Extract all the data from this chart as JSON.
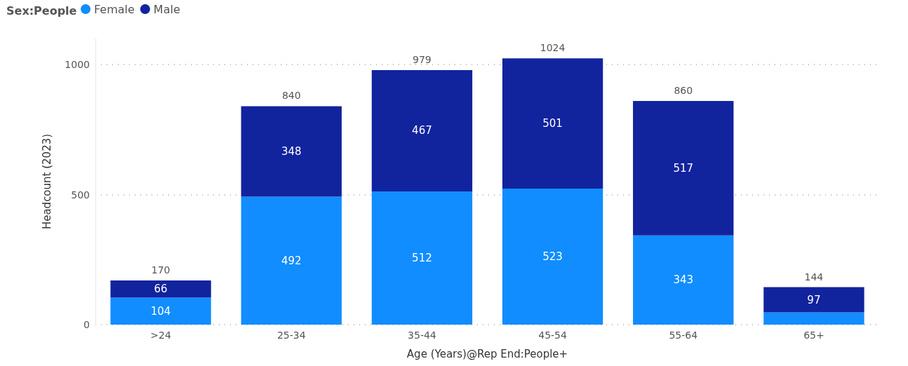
{
  "chart_data": {
    "type": "bar",
    "stacked": true,
    "legend_title": "Sex:People",
    "xlabel": "Age (Years)@Rep End:People+",
    "ylabel": "Headcount (2023)",
    "categories": [
      ">24",
      "25-34",
      "35-44",
      "45-54",
      "55-64",
      "65+"
    ],
    "series": [
      {
        "name": "Female",
        "color": "#118dff",
        "values": [
          104,
          492,
          512,
          523,
          343,
          47
        ],
        "value_labels": [
          "104",
          "492",
          "512",
          "523",
          "343",
          null
        ]
      },
      {
        "name": "Male",
        "color": "#12239e",
        "values": [
          66,
          348,
          467,
          501,
          517,
          97
        ],
        "value_labels": [
          "66",
          "348",
          "467",
          "501",
          "517",
          "97"
        ]
      }
    ],
    "totals": [
      "170",
      "840",
      "979",
      "1024",
      "860",
      "144"
    ],
    "ylim": [
      0,
      1100
    ],
    "yticks": [
      0,
      500,
      1000
    ],
    "grid": "y",
    "legend": "top left"
  }
}
